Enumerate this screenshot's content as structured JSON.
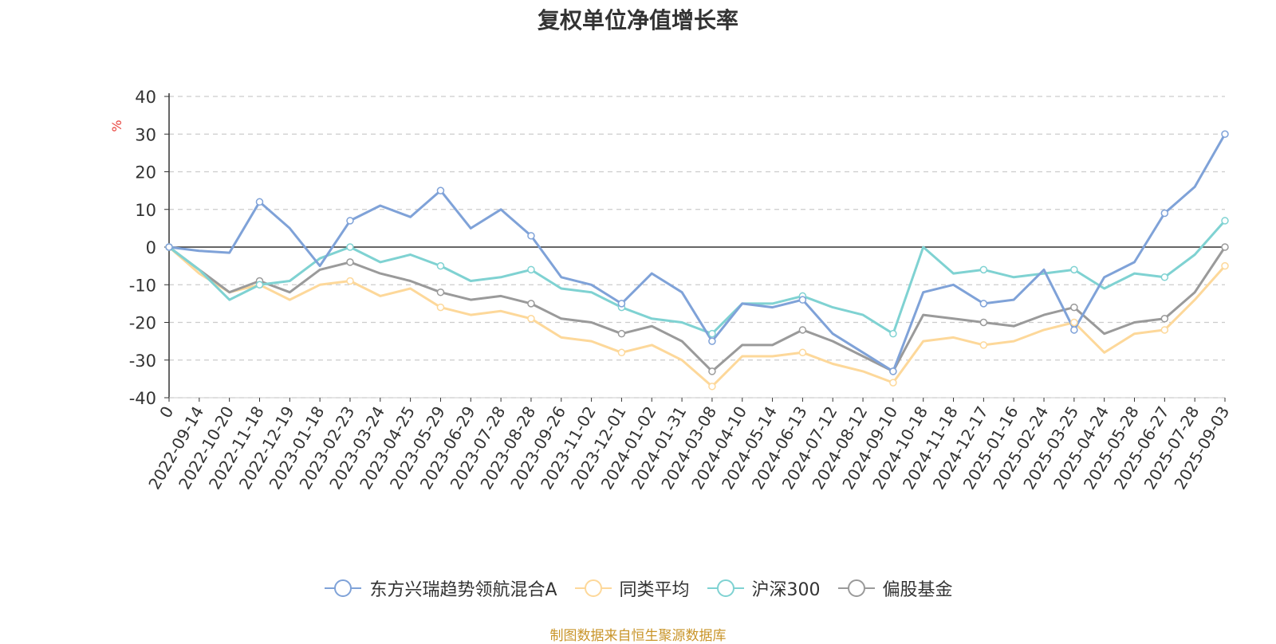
{
  "chart_data": {
    "type": "line",
    "title": "复权单位净值增长率",
    "ylabel": "%",
    "ylim": [
      -40,
      40
    ],
    "yticks": [
      40,
      30,
      20,
      10,
      0,
      -10,
      -20,
      -30,
      -40
    ],
    "grid": true,
    "legend_position": "bottom",
    "x_tick_labels": [
      "0",
      "2022-09-14",
      "2022-10-20",
      "2022-11-18",
      "2022-12-19",
      "2023-01-18",
      "2023-02-23",
      "2023-03-24",
      "2023-04-25",
      "2023-05-29",
      "2023-06-29",
      "2023-07-28",
      "2023-08-28",
      "2023-09-26",
      "2023-11-02",
      "2023-12-01",
      "2024-01-02",
      "2024-01-31",
      "2024-03-08",
      "2024-04-10",
      "2024-05-14",
      "2024-06-13",
      "2024-07-12",
      "2024-08-12",
      "2024-09-10",
      "2024-10-18",
      "2024-11-18",
      "2024-12-17",
      "2025-01-16",
      "2025-02-24",
      "2025-03-25",
      "2025-04-24",
      "2025-05-28",
      "2025-06-27",
      "2025-07-28",
      "2025-09-03"
    ],
    "x": [
      "0",
      "2022-09-14",
      "2022-10-20",
      "2022-11-18",
      "2022-12-19",
      "2023-01-18",
      "2023-02-23",
      "2023-03-24",
      "2023-04-25",
      "2023-05-29",
      "2023-06-29",
      "2023-07-28",
      "2023-08-28",
      "2023-09-26",
      "2023-11-02",
      "2023-12-01",
      "2024-01-02",
      "2024-01-31",
      "2024-03-08",
      "2024-04-10",
      "2024-05-14",
      "2024-06-13",
      "2024-07-12",
      "2024-08-12",
      "2024-09-10",
      "2024-10-18",
      "2024-11-18",
      "2024-12-17",
      "2025-01-16",
      "2025-02-24",
      "2025-03-25",
      "2025-04-24",
      "2025-05-28",
      "2025-06-27",
      "2025-07-28",
      "2025-09-03"
    ],
    "series": [
      {
        "name": "东方兴瑞趋势领航混合A",
        "color": "#7fa2d8",
        "values": [
          0,
          -1,
          -1.5,
          12,
          5,
          -5,
          7,
          11,
          8,
          15,
          5,
          10,
          3,
          -8,
          -10,
          -15,
          -7,
          -12,
          -25,
          -15,
          -16,
          -14,
          -23,
          -28,
          -33,
          -12,
          -10,
          -15,
          -14,
          -6,
          -22,
          -8,
          -4,
          9,
          16,
          30
        ]
      },
      {
        "name": "同类平均",
        "color": "#fdd89a",
        "values": [
          0,
          -7,
          -12,
          -10,
          -14,
          -10,
          -9,
          -13,
          -11,
          -16,
          -18,
          -17,
          -19,
          -24,
          -25,
          -28,
          -26,
          -30,
          -37,
          -29,
          -29,
          -28,
          -31,
          -33,
          -36,
          -25,
          -24,
          -26,
          -25,
          -22,
          -20,
          -28,
          -23,
          -22,
          -14,
          -5
        ]
      },
      {
        "name": "沪深300",
        "color": "#7fd2d2",
        "values": [
          0,
          -6,
          -14,
          -10,
          -9,
          -3,
          0,
          -4,
          -2,
          -5,
          -9,
          -8,
          -6,
          -11,
          -12,
          -16,
          -19,
          -20,
          -23,
          -15,
          -15,
          -13,
          -16,
          -18,
          -23,
          0,
          -7,
          -6,
          -8,
          -7,
          -6,
          -11,
          -7,
          -8,
          -2,
          7
        ]
      },
      {
        "name": "偏股基金",
        "color": "#9a9a9a",
        "values": [
          0,
          -6,
          -12,
          -9,
          -12,
          -6,
          -4,
          -7,
          -9,
          -12,
          -14,
          -13,
          -15,
          -19,
          -20,
          -23,
          -21,
          -25,
          -33,
          -26,
          -26,
          -22,
          -25,
          -29,
          -33,
          -18,
          -19,
          -20,
          -21,
          -18,
          -16,
          -23,
          -20,
          -19,
          -12,
          0
        ]
      }
    ]
  },
  "source": "制图数据来自恒生聚源数据库"
}
